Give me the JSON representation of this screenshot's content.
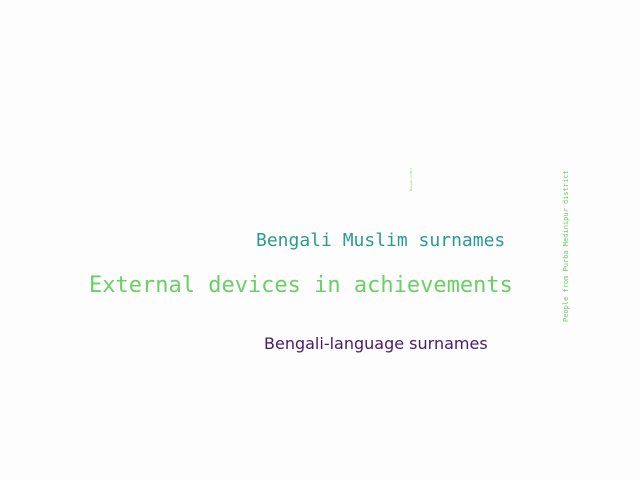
{
  "words": [
    {
      "text": "External devices in achievements",
      "color": "#6bcf63"
    },
    {
      "text": "Bengali Muslim surnames",
      "color": "#2a9b8f"
    },
    {
      "text": "Bengali-language surnames",
      "color": "#4a1a6b"
    },
    {
      "text": "People from Purba Medinipur district",
      "color": "#6bcf63"
    },
    {
      "text": "Bengali conflict",
      "color": "#8fd068"
    }
  ]
}
